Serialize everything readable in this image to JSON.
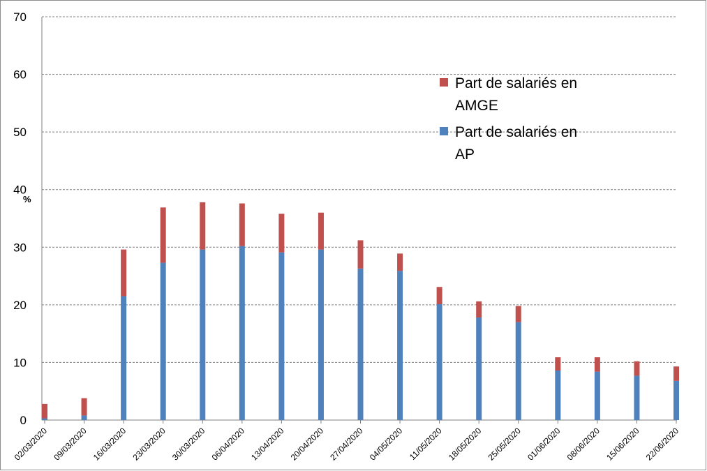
{
  "chart_data": {
    "type": "bar",
    "stacked": true,
    "ylabel": "%",
    "ylim": [
      0,
      70
    ],
    "yticks": [
      0,
      10,
      20,
      30,
      40,
      50,
      60,
      70
    ],
    "grid": true,
    "legend_position": "top-right",
    "categories": [
      "02/03/2020",
      "09/03/2020",
      "16/03/2020",
      "23/03/2020",
      "30/03/2020",
      "06/04/2020",
      "13/04/2020",
      "20/04/2020",
      "27/04/2020",
      "04/05/2020",
      "11/05/2020",
      "18/05/2020",
      "25/05/2020",
      "01/06/2020",
      "08/06/2020",
      "15/06/2020",
      "22/06/2020"
    ],
    "series": [
      {
        "name": "Part de salariés en AP",
        "color": "#4f81bd",
        "values": [
          0.3,
          0.8,
          21.5,
          27.3,
          29.6,
          30.2,
          29.1,
          29.6,
          26.3,
          25.9,
          20.1,
          17.8,
          17.0,
          8.6,
          8.4,
          7.7,
          6.8
        ]
      },
      {
        "name": "Part de salariés en AMGE",
        "color": "#c0504d",
        "values": [
          2.5,
          3.0,
          8.1,
          9.6,
          8.2,
          7.4,
          6.7,
          6.4,
          4.9,
          3.0,
          3.0,
          2.8,
          2.8,
          2.3,
          2.5,
          2.5,
          2.5
        ]
      }
    ]
  }
}
